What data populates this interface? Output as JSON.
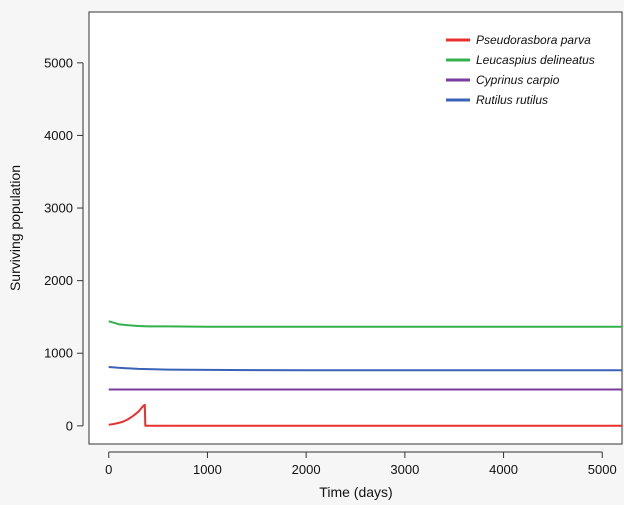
{
  "chart_data": {
    "type": "line",
    "title": "",
    "xlabel": "Time (days)",
    "ylabel": "Surviving population",
    "xlim": [
      -200,
      5200
    ],
    "ylim": [
      -250,
      5700
    ],
    "x_ticks": [
      0,
      1000,
      2000,
      3000,
      4000,
      5000
    ],
    "y_ticks": [
      0,
      1000,
      2000,
      3000,
      4000,
      5000
    ],
    "grid": false,
    "legend_position": "top-right",
    "series": [
      {
        "name": "Pseudorasbora parva",
        "color": "#e8312f",
        "x": [
          0,
          50,
          100,
          150,
          200,
          250,
          300,
          350,
          365,
          370,
          400,
          1000,
          2000,
          3000,
          4000,
          5200
        ],
        "y": [
          15,
          25,
          40,
          60,
          95,
          140,
          195,
          275,
          290,
          0,
          0,
          0,
          0,
          0,
          0,
          0
        ]
      },
      {
        "name": "Leucaspius delineatus",
        "color": "#34b04a",
        "x": [
          0,
          50,
          100,
          200,
          300,
          400,
          600,
          1000,
          2000,
          3000,
          4000,
          5200
        ],
        "y": [
          1440,
          1420,
          1400,
          1385,
          1375,
          1370,
          1370,
          1365,
          1365,
          1365,
          1365,
          1365
        ]
      },
      {
        "name": "Cyprinus carpio",
        "color": "#7a3c9e",
        "x": [
          0,
          1000,
          2000,
          3000,
          4000,
          5200
        ],
        "y": [
          500,
          500,
          500,
          500,
          500,
          500
        ]
      },
      {
        "name": "Rutilus rutilus",
        "color": "#3a62b8",
        "x": [
          0,
          100,
          300,
          600,
          1000,
          1500,
          2000,
          3000,
          4000,
          5200
        ],
        "y": [
          810,
          800,
          785,
          775,
          770,
          768,
          766,
          765,
          765,
          765
        ]
      }
    ]
  }
}
